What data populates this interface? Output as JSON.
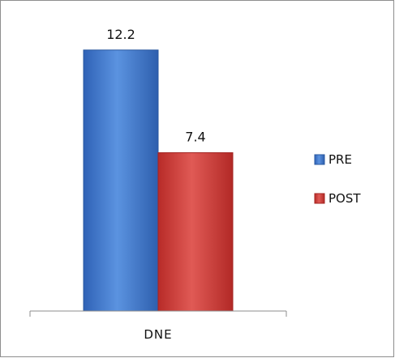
{
  "chart_data": {
    "type": "bar",
    "title": "",
    "xlabel": "",
    "ylabel": "",
    "categories": [
      "DNE"
    ],
    "series": [
      {
        "name": "PRE",
        "values": [
          12.2
        ],
        "color": "#4a7fd0"
      },
      {
        "name": "POST",
        "values": [
          7.4
        ],
        "color": "#d04440"
      }
    ],
    "ylim": [
      0,
      14.5
    ],
    "grid": false,
    "legend_position": "right",
    "data_labels": [
      "12.2",
      "7.4"
    ]
  }
}
